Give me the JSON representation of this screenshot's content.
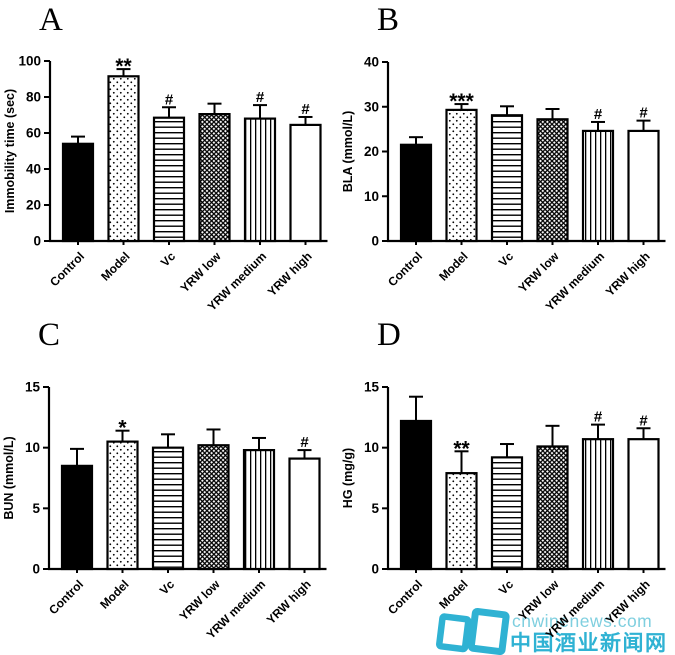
{
  "figure": {
    "background": "#ffffff",
    "ink_color": "#000000",
    "categories": [
      "Control",
      "Model",
      "Vc",
      "YRW low",
      "YRW medium",
      "YRW high"
    ],
    "bar_patterns": [
      "solid",
      "dots",
      "hlines",
      "crosshatch",
      "vlines",
      "open"
    ]
  },
  "chart_data": [
    {
      "type": "bar",
      "letter": "A",
      "ylabel": "Immobility time (sec)",
      "ylim": [
        0,
        100
      ],
      "ytick_step": 20,
      "categories": [
        "Control",
        "Model",
        "Vc",
        "YRW low",
        "YRW medium",
        "YRW high"
      ],
      "values": [
        54,
        91.5,
        68.5,
        70.5,
        68,
        64.5
      ],
      "errors_upper": [
        4,
        4,
        5.8,
        5.8,
        7.5,
        4.4
      ],
      "significance": [
        "",
        "**",
        "#",
        "",
        "#",
        "#"
      ]
    },
    {
      "type": "bar",
      "letter": "B",
      "ylabel": "BLA (mmol/L)",
      "ylim": [
        0,
        40
      ],
      "ytick_step": 10,
      "categories": [
        "Control",
        "Model",
        "Vc",
        "YRW low",
        "YRW medium",
        "YRW high"
      ],
      "values": [
        21.5,
        29.3,
        28.1,
        27.2,
        24.6,
        24.6
      ],
      "errors_upper": [
        1.7,
        1.3,
        2.0,
        2.3,
        2.0,
        2.3
      ],
      "significance": [
        "",
        "***",
        "",
        "",
        "#",
        "#"
      ]
    },
    {
      "type": "bar",
      "letter": "C",
      "ylabel": "BUN (mmol/L)",
      "ylim": [
        0,
        15
      ],
      "ytick_step": 5,
      "categories": [
        "Control",
        "Model",
        "Vc",
        "YRW low",
        "YRW medium",
        "YRW high"
      ],
      "values": [
        8.5,
        10.5,
        10.0,
        10.2,
        9.8,
        9.1
      ],
      "errors_upper": [
        1.4,
        0.9,
        1.1,
        1.3,
        1.0,
        0.7
      ],
      "significance": [
        "",
        "*",
        "",
        "",
        "",
        "#"
      ]
    },
    {
      "type": "bar",
      "letter": "D",
      "ylabel": "HG (mg/g)",
      "ylim": [
        0,
        15
      ],
      "ytick_step": 5,
      "categories": [
        "Control",
        "Model",
        "Vc",
        "YRW low",
        "YRW medium",
        "YRW high"
      ],
      "values": [
        12.2,
        7.9,
        9.2,
        10.1,
        10.7,
        10.7
      ],
      "errors_upper": [
        2.0,
        1.8,
        1.1,
        1.7,
        1.2,
        0.9
      ],
      "significance": [
        "",
        "**",
        "",
        "",
        "#",
        "#"
      ]
    }
  ],
  "watermark": {
    "domain": "cnwinenews.com",
    "site_name": "中国酒业新闻网",
    "logo_color": "#2fb2d3",
    "domain_color": "#7fcfdf"
  }
}
